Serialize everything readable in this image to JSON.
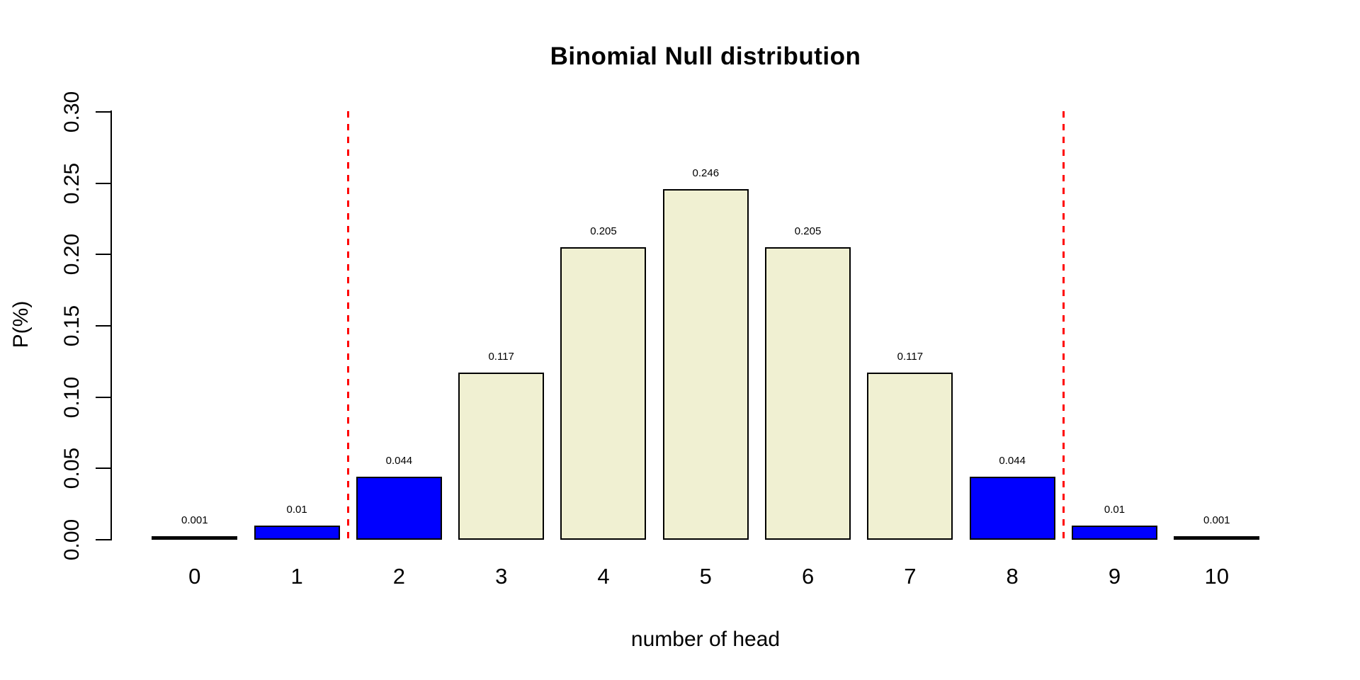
{
  "chart_data": {
    "type": "bar",
    "title": "Binomial Null distribution",
    "xlabel": "number of head",
    "ylabel": "P(%)",
    "categories": [
      "0",
      "1",
      "2",
      "3",
      "4",
      "5",
      "6",
      "7",
      "8",
      "9",
      "10"
    ],
    "values": [
      0.001,
      0.01,
      0.044,
      0.117,
      0.205,
      0.246,
      0.205,
      0.117,
      0.044,
      0.01,
      0.001
    ],
    "value_labels": [
      "0.001",
      "0.01",
      "0.044",
      "0.117",
      "0.205",
      "0.246",
      "0.205",
      "0.117",
      "0.044",
      "0.01",
      "0.001"
    ],
    "bar_colors": [
      "#000000",
      "#0000FF",
      "#0000FF",
      "#F0F0D2",
      "#F0F0D2",
      "#F0F0D2",
      "#F0F0D2",
      "#F0F0D2",
      "#0000FF",
      "#0000FF",
      "#000000"
    ],
    "bar_border_color": "#000000",
    "ylim": [
      0,
      0.3
    ],
    "yticks": [
      "0.00",
      "0.05",
      "0.10",
      "0.15",
      "0.20",
      "0.25",
      "0.30"
    ],
    "grid": false,
    "legend": null,
    "vlines": [
      {
        "x": 1.5,
        "color": "#FF0000",
        "style": "dashed"
      },
      {
        "x": 8.5,
        "color": "#FF0000",
        "style": "dashed"
      }
    ]
  }
}
